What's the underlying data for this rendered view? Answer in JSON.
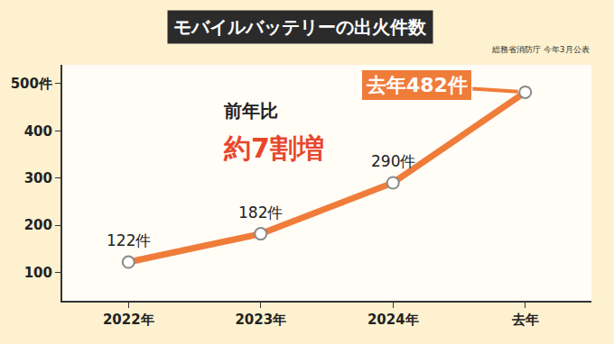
{
  "chart_data": {
    "type": "line",
    "title": "モバイルバッテリーの出火件数",
    "source": "総務省消防庁 今年3月公表",
    "categories": [
      "2022年",
      "2023年",
      "2024年",
      "去年"
    ],
    "values": [
      122,
      182,
      290,
      482
    ],
    "value_labels": [
      "122件",
      "182件",
      "290件",
      "去年482件"
    ],
    "data_labels": true,
    "color": "#f07c3a",
    "marker": "circle",
    "annotations": [
      "前年比",
      "約7割増"
    ],
    "ylim": [
      40,
      540
    ],
    "yticks": [
      100,
      200,
      300,
      400,
      {
        "value": 500,
        "label": "500件"
      }
    ],
    "grid": false
  }
}
